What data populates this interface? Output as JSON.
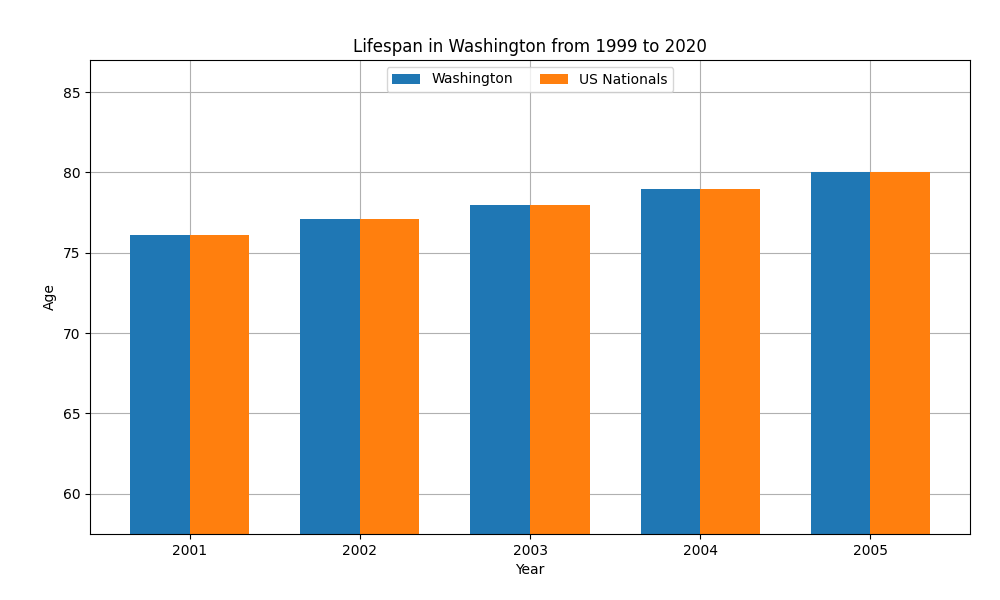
{
  "chart_data": {
    "type": "bar",
    "title": "Lifespan in Washington from 1999 to 2020",
    "x_label": "Year",
    "y_label": "Age",
    "categories": [
      "2001",
      "2002",
      "2003",
      "2004",
      "2005"
    ],
    "series": [
      {
        "name": "Washington",
        "values": [
          76.1,
          77.1,
          78.0,
          79.0,
          80.0
        ]
      },
      {
        "name": "US Nationals",
        "values": [
          76.1,
          77.1,
          78.0,
          79.0,
          80.0
        ]
      }
    ],
    "ylim": [
      57.5,
      87
    ],
    "yticks": [
      60,
      65,
      70,
      75,
      80,
      85
    ],
    "grid": true,
    "legend": "upper center"
  }
}
